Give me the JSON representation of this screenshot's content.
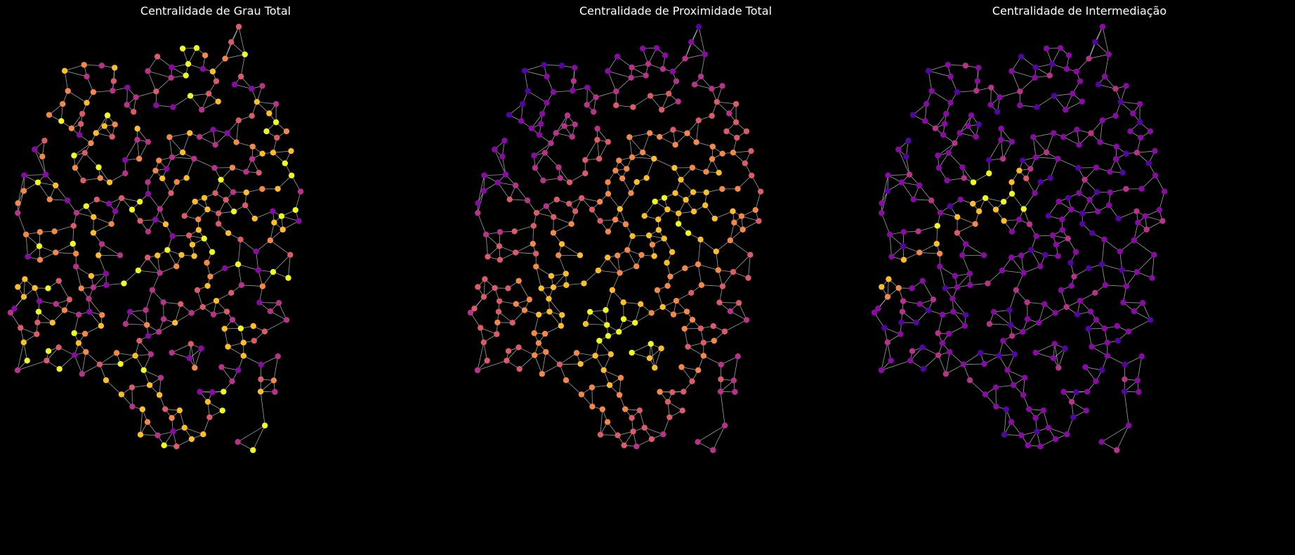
{
  "panels": [
    {
      "title": "Centralidade de Grau Total",
      "metric": "degree"
    },
    {
      "title": "Centralidade de Proximidade Total",
      "metric": "closeness"
    },
    {
      "title": "Centralidade de Intermediação",
      "metric": "betweenness"
    }
  ],
  "style": {
    "background": "#000000",
    "edge_color": "#c8c8c8",
    "colormap": "plasma",
    "colormap_stops": [
      "#0d0887",
      "#5302a3",
      "#8b0aa5",
      "#b83289",
      "#db5c68",
      "#f48849",
      "#febd2a",
      "#f0f921"
    ]
  }
}
